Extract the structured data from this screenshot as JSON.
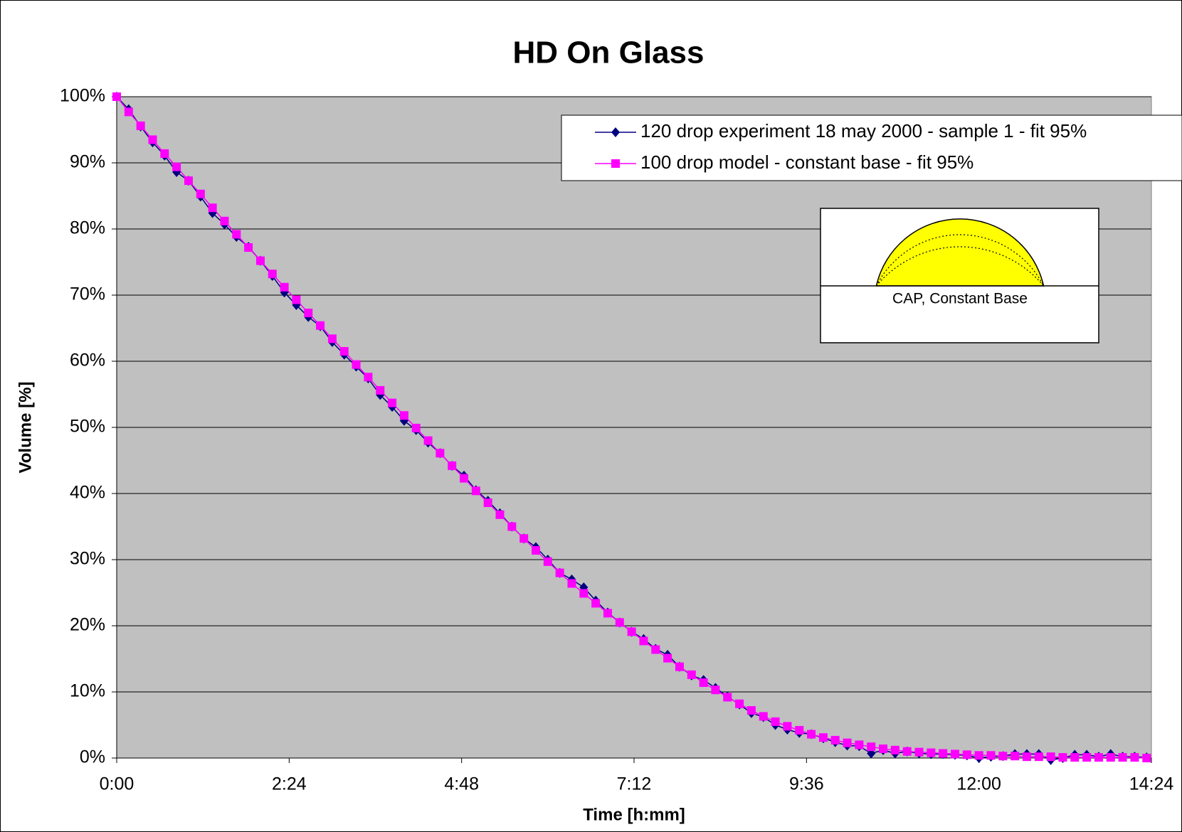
{
  "chart_data": {
    "type": "line",
    "title": "HD On Glass",
    "x_label": "Time [h:mm]",
    "y_label": "Volume [%]",
    "xlim": [
      0,
      864
    ],
    "ylim": [
      0,
      100
    ],
    "xticks": [
      {
        "value": 0,
        "label": "0:00"
      },
      {
        "value": 144,
        "label": "2:24"
      },
      {
        "value": 288,
        "label": "4:48"
      },
      {
        "value": 432,
        "label": "7:12"
      },
      {
        "value": 576,
        "label": "9:36"
      },
      {
        "value": 720,
        "label": "12:00"
      },
      {
        "value": 864,
        "label": "14:24"
      }
    ],
    "yticks": [
      {
        "value": 0,
        "label": "0%"
      },
      {
        "value": 10,
        "label": "10%"
      },
      {
        "value": 20,
        "label": "20%"
      },
      {
        "value": 30,
        "label": "30%"
      },
      {
        "value": 40,
        "label": "40%"
      },
      {
        "value": 50,
        "label": "50%"
      },
      {
        "value": 60,
        "label": "60%"
      },
      {
        "value": 70,
        "label": "70%"
      },
      {
        "value": 80,
        "label": "80%"
      },
      {
        "value": 90,
        "label": "90%"
      },
      {
        "value": 100,
        "label": "100%"
      }
    ],
    "grid": true,
    "legend": "top-right",
    "annotation": "CAP, Constant Base",
    "x": [
      0,
      10,
      20,
      30,
      40,
      50,
      60,
      70,
      80,
      90,
      100,
      110,
      120,
      130,
      140,
      150,
      160,
      170,
      180,
      190,
      200,
      210,
      220,
      230,
      240,
      250,
      260,
      270,
      280,
      290,
      300,
      310,
      320,
      330,
      340,
      350,
      360,
      370,
      380,
      390,
      400,
      410,
      420,
      430,
      440,
      450,
      460,
      470,
      480,
      490,
      500,
      510,
      520,
      530,
      540,
      550,
      560,
      570,
      580,
      590,
      600,
      610,
      620,
      630,
      640,
      650,
      660,
      670,
      680,
      690,
      700,
      710,
      720,
      730,
      740,
      750,
      760,
      770,
      780,
      790,
      800,
      810,
      820,
      830,
      840,
      850,
      860
    ],
    "series": [
      {
        "name": "120 drop experiment 18 may 2000 - sample 1 - fit 95%",
        "color": "#000080",
        "marker": "diamond",
        "values": [
          100,
          98.1,
          95.5,
          93.1,
          91.1,
          88.6,
          87.3,
          84.9,
          82.4,
          80.7,
          78.8,
          77.3,
          75.2,
          72.9,
          70.4,
          68.5,
          66.7,
          65.3,
          62.9,
          61.0,
          59.2,
          57.4,
          54.9,
          53.1,
          51.0,
          49.6,
          47.7,
          46.1,
          44.2,
          42.7,
          40.5,
          38.9,
          37.0,
          35.0,
          33.2,
          31.9,
          30.0,
          28.0,
          27.0,
          25.8,
          23.8,
          22.0,
          20.5,
          19.1,
          18.0,
          16.5,
          15.6,
          13.8,
          12.5,
          11.8,
          10.6,
          9.3,
          8.1,
          6.8,
          6.2,
          5.0,
          4.3,
          3.8,
          3.6,
          3.0,
          2.4,
          1.9,
          1.8,
          0.7,
          1.2,
          0.7,
          1.0,
          0.7,
          0.6,
          0.6,
          0.5,
          0.4,
          0.0,
          0.2,
          0.3,
          0.6,
          0.6,
          0.6,
          -0.3,
          0.0,
          0.5,
          0.5,
          0.2,
          0.6,
          0.2,
          0.2,
          0.1
        ]
      },
      {
        "name": "100 drop model - constant base - fit 95%",
        "color": "#ff00ff",
        "marker": "square",
        "values": [
          100,
          97.7,
          95.6,
          93.5,
          91.4,
          89.4,
          87.3,
          85.3,
          83.2,
          81.2,
          79.2,
          77.2,
          75.2,
          73.2,
          71.2,
          69.3,
          67.3,
          65.4,
          63.4,
          61.5,
          59.5,
          57.6,
          55.6,
          53.7,
          51.8,
          49.9,
          48.0,
          46.1,
          44.2,
          42.3,
          40.4,
          38.6,
          36.8,
          35.0,
          33.2,
          31.4,
          29.7,
          28.0,
          26.4,
          24.9,
          23.4,
          21.9,
          20.5,
          19.1,
          17.7,
          16.4,
          15.1,
          13.8,
          12.6,
          11.4,
          10.3,
          9.2,
          8.2,
          7.2,
          6.3,
          5.5,
          4.8,
          4.2,
          3.6,
          3.1,
          2.7,
          2.3,
          2.0,
          1.7,
          1.4,
          1.2,
          1.0,
          0.9,
          0.8,
          0.7,
          0.6,
          0.5,
          0.4,
          0.4,
          0.3,
          0.3,
          0.2,
          0.2,
          0.2,
          0.1,
          0.1,
          0.1,
          0.1,
          0.1,
          0.1,
          0.1,
          0
        ]
      }
    ]
  }
}
